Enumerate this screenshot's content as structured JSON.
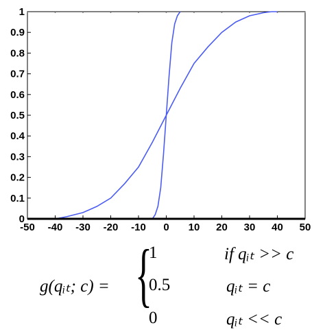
{
  "chart_data": {
    "type": "line",
    "x_ticks": [
      "-50",
      "-40",
      "-30",
      "-20",
      "-10",
      "0",
      "10",
      "20",
      "30",
      "40",
      "50"
    ],
    "y_ticks": [
      "0",
      "0.1",
      "0.2",
      "0.3",
      "0.4",
      "0.5",
      "0.6",
      "0.7",
      "0.8",
      "0.9",
      "1"
    ],
    "xlim": [
      -50,
      50
    ],
    "ylim": [
      0,
      1
    ],
    "grid": false,
    "series_color": "#4b5cf2",
    "series": [
      {
        "x": [
          -50,
          -40,
          -36,
          -30,
          -25,
          -20,
          -15,
          -10,
          -5,
          0,
          5,
          10,
          15,
          20,
          25,
          30,
          35,
          38,
          40
        ],
        "y": [
          0,
          0,
          0.01,
          0.03,
          0.06,
          0.1,
          0.17,
          0.25,
          0.37,
          0.5,
          0.63,
          0.75,
          0.83,
          0.9,
          0.95,
          0.98,
          0.995,
          1.0,
          1.0
        ]
      },
      {
        "x": [
          -5,
          -4,
          -3,
          -2,
          -1,
          0,
          1,
          2,
          3,
          4,
          5
        ],
        "y": [
          0,
          0.02,
          0.06,
          0.15,
          0.31,
          0.5,
          0.69,
          0.85,
          0.94,
          0.98,
          1.0
        ]
      }
    ]
  },
  "formula": {
    "lhs": "g(qᵢₜ; c) =",
    "cases": [
      {
        "value": "1",
        "condition": "if qᵢₜ >> c"
      },
      {
        "value": "0.5",
        "condition": "qᵢₜ = c"
      },
      {
        "value": "0",
        "condition": "qᵢₜ << c"
      }
    ]
  }
}
